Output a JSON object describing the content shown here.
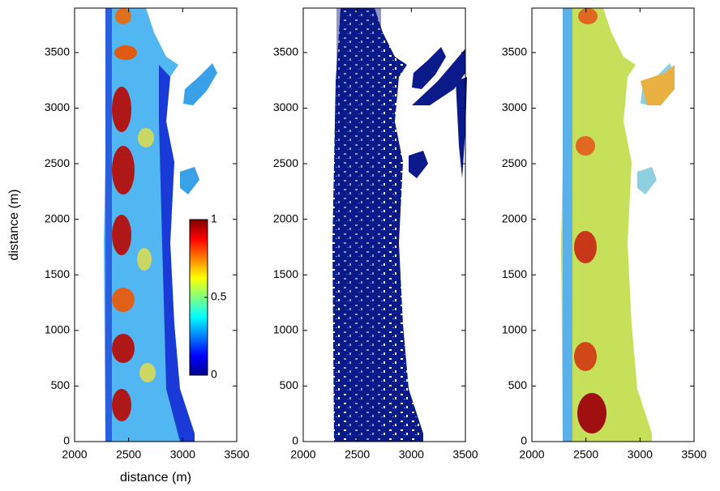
{
  "chart_data": [
    {
      "type": "heatmap",
      "xlabel": "distance (m)",
      "ylabel": "distance (m)",
      "xlim": [
        2000,
        3500
      ],
      "xticks": [
        2000,
        2500,
        3000,
        3500
      ],
      "ylim": [
        0,
        3900
      ],
      "yticks": [
        0,
        500,
        1000,
        1500,
        2000,
        2500,
        3000,
        3500
      ],
      "colorbar": {
        "lim": [
          0,
          1
        ],
        "ticks": [
          0,
          0.5,
          1
        ]
      }
    },
    {
      "type": "heatmap",
      "xlim": [
        2000,
        3500
      ],
      "xticks": [
        2000,
        2500,
        3000,
        3500
      ],
      "ylim": [
        0,
        3900
      ],
      "yticks": [
        0,
        500,
        1000,
        1500,
        2000,
        2500,
        3000,
        3500
      ]
    },
    {
      "type": "heatmap",
      "xlim": [
        2000,
        3500
      ],
      "xticks": [
        2000,
        2500,
        3000,
        3500
      ],
      "ylim": [
        0,
        3900
      ],
      "yticks": [
        0,
        500,
        1000,
        1500,
        2000,
        2500,
        3000,
        3500
      ]
    }
  ]
}
